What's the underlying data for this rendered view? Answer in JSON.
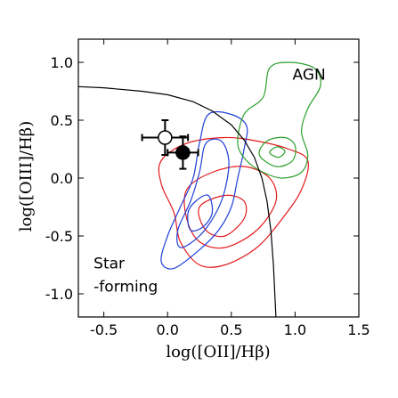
{
  "chart_data": {
    "type": "scatter",
    "xlabel": "log([OII]/Hβ)",
    "ylabel": "log([OIII]/Hβ)",
    "xlim": [
      -0.7,
      1.5
    ],
    "ylim": [
      -1.2,
      1.2
    ],
    "xticks": [
      -0.5,
      0.0,
      0.5,
      1.0,
      1.5
    ],
    "xtick_labels": [
      "-0.5",
      "0.0",
      "0.5",
      "1.0",
      "1.5"
    ],
    "yticks": [
      -1.0,
      -0.5,
      0.0,
      0.5,
      1.0
    ],
    "ytick_labels": [
      "-1.0",
      "-0.5",
      "0.0",
      "0.5",
      "1.0"
    ],
    "grid": false,
    "annotations": [
      {
        "text": "AGN",
        "x": 0.98,
        "y": 0.85
      },
      {
        "text": "Star",
        "x": -0.58,
        "y": -0.78
      },
      {
        "text": "-forming",
        "x": -0.58,
        "y": -0.98
      }
    ],
    "points": [
      {
        "name": "open",
        "x": -0.02,
        "y": 0.35,
        "xerr": 0.18,
        "yerr": 0.15,
        "filled": false
      },
      {
        "name": "filled",
        "x": 0.12,
        "y": 0.22,
        "xerr": 0.12,
        "yerr": 0.14,
        "filled": true
      }
    ],
    "boundary_curve": [
      [
        -0.7,
        0.79
      ],
      [
        -0.5,
        0.78
      ],
      [
        -0.2,
        0.75
      ],
      [
        0.0,
        0.72
      ],
      [
        0.2,
        0.66
      ],
      [
        0.35,
        0.58
      ],
      [
        0.5,
        0.46
      ],
      [
        0.6,
        0.33
      ],
      [
        0.68,
        0.18
      ],
      [
        0.74,
        0.0
      ],
      [
        0.78,
        -0.2
      ],
      [
        0.81,
        -0.45
      ],
      [
        0.83,
        -0.75
      ],
      [
        0.85,
        -1.2
      ]
    ],
    "contours": {
      "red": {
        "color": "#e41a1c",
        "levels": [
          [
            [
              -0.05,
              0.15
            ],
            [
              0.15,
              0.3
            ],
            [
              0.45,
              0.35
            ],
            [
              0.7,
              0.32
            ],
            [
              0.95,
              0.25
            ],
            [
              1.1,
              0.15
            ],
            [
              1.05,
              -0.1
            ],
            [
              0.9,
              -0.35
            ],
            [
              0.7,
              -0.6
            ],
            [
              0.45,
              -0.75
            ],
            [
              0.25,
              -0.75
            ],
            [
              0.1,
              -0.55
            ],
            [
              0.05,
              -0.3
            ],
            [
              -0.05,
              -0.05
            ]
          ],
          [
            [
              0.15,
              -0.1
            ],
            [
              0.35,
              0.05
            ],
            [
              0.6,
              0.1
            ],
            [
              0.8,
              0.0
            ],
            [
              0.85,
              -0.2
            ],
            [
              0.7,
              -0.45
            ],
            [
              0.45,
              -0.6
            ],
            [
              0.25,
              -0.55
            ],
            [
              0.15,
              -0.35
            ]
          ],
          [
            [
              0.25,
              -0.25
            ],
            [
              0.45,
              -0.15
            ],
            [
              0.6,
              -0.2
            ],
            [
              0.6,
              -0.35
            ],
            [
              0.45,
              -0.5
            ],
            [
              0.3,
              -0.45
            ]
          ]
        ]
      },
      "blue": {
        "color": "#1f3fd8",
        "levels": [
          [
            [
              0.32,
              0.55
            ],
            [
              0.5,
              0.55
            ],
            [
              0.62,
              0.45
            ],
            [
              0.6,
              0.25
            ],
            [
              0.55,
              0.0
            ],
            [
              0.5,
              -0.25
            ],
            [
              0.4,
              -0.45
            ],
            [
              0.25,
              -0.62
            ],
            [
              0.05,
              -0.78
            ],
            [
              -0.05,
              -0.72
            ],
            [
              0.0,
              -0.5
            ],
            [
              0.1,
              -0.25
            ],
            [
              0.2,
              0.0
            ],
            [
              0.25,
              0.3
            ]
          ],
          [
            [
              0.3,
              0.3
            ],
            [
              0.42,
              0.32
            ],
            [
              0.48,
              0.15
            ],
            [
              0.45,
              -0.1
            ],
            [
              0.38,
              -0.3
            ],
            [
              0.25,
              -0.5
            ],
            [
              0.1,
              -0.6
            ],
            [
              0.08,
              -0.45
            ],
            [
              0.18,
              -0.2
            ],
            [
              0.25,
              0.05
            ]
          ],
          [
            [
              0.22,
              -0.2
            ],
            [
              0.32,
              -0.15
            ],
            [
              0.35,
              -0.3
            ],
            [
              0.28,
              -0.42
            ],
            [
              0.18,
              -0.45
            ],
            [
              0.16,
              -0.3
            ]
          ]
        ]
      },
      "green": {
        "color": "#2ca02c",
        "levels": [
          [
            [
              0.55,
              0.3
            ],
            [
              0.6,
              0.55
            ],
            [
              0.75,
              0.7
            ],
            [
              0.8,
              0.95
            ],
            [
              0.95,
              1.0
            ],
            [
              1.15,
              0.95
            ],
            [
              1.2,
              0.8
            ],
            [
              1.1,
              0.6
            ],
            [
              1.05,
              0.4
            ],
            [
              1.1,
              0.2
            ],
            [
              1.05,
              0.05
            ],
            [
              0.9,
              0.0
            ],
            [
              0.75,
              0.05
            ],
            [
              0.62,
              0.15
            ]
          ],
          [
            [
              0.72,
              0.2
            ],
            [
              0.78,
              0.32
            ],
            [
              0.92,
              0.35
            ],
            [
              1.0,
              0.28
            ],
            [
              0.98,
              0.15
            ],
            [
              0.85,
              0.1
            ]
          ],
          [
            [
              0.8,
              0.22
            ],
            [
              0.86,
              0.27
            ],
            [
              0.92,
              0.23
            ],
            [
              0.87,
              0.18
            ]
          ]
        ]
      }
    }
  }
}
